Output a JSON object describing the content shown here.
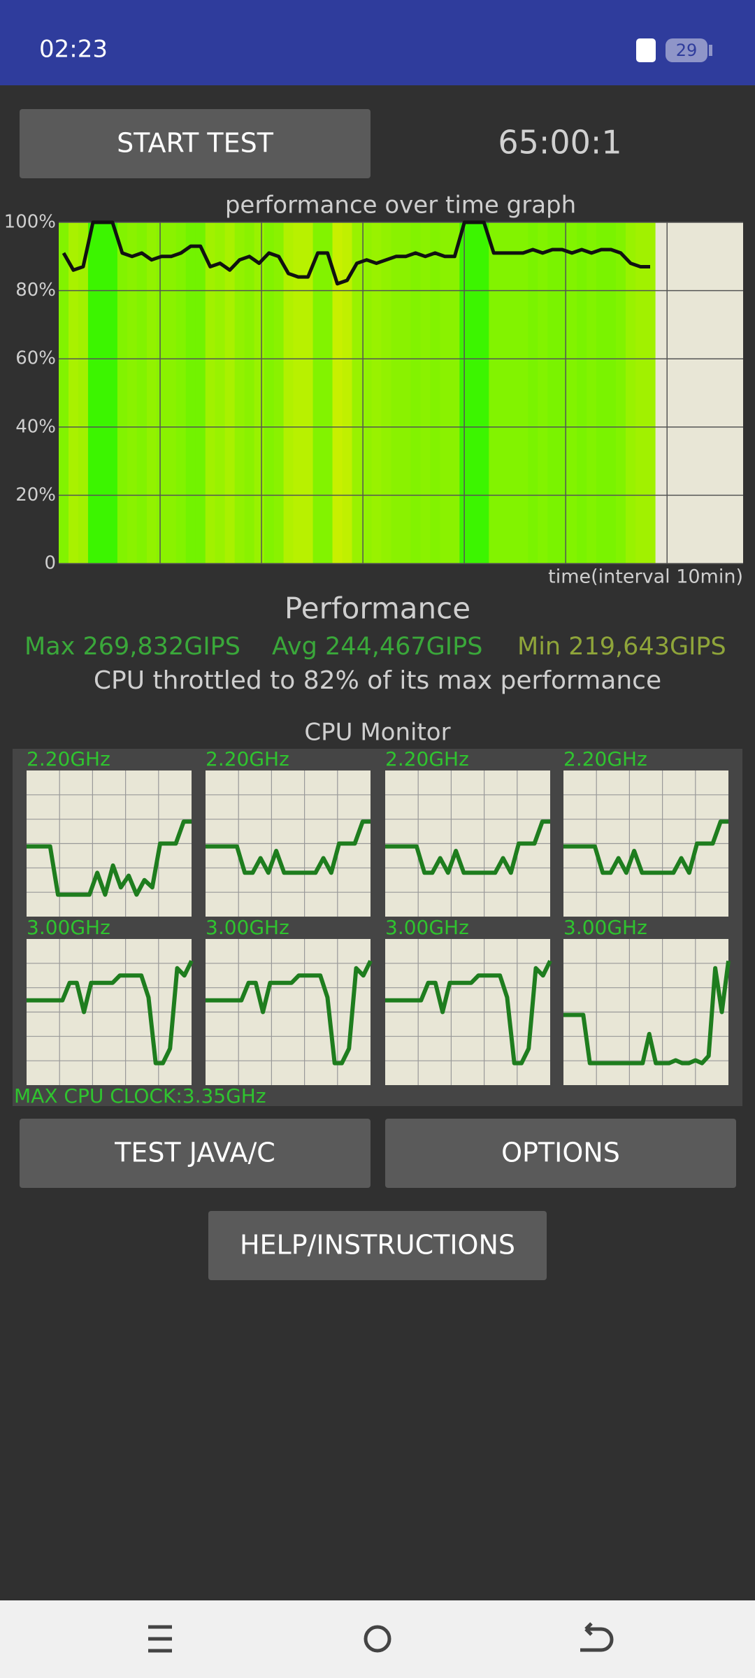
{
  "status_bar": {
    "time": "02:23",
    "battery": "29"
  },
  "buttons": {
    "start": "START TEST",
    "test_java": "TEST JAVA/C",
    "options": "OPTIONS",
    "help": "HELP/INSTRUCTIONS"
  },
  "timer": "65:00:1",
  "performance_graph": {
    "title": "performance over time graph",
    "ylim": [
      0,
      100
    ],
    "yticks": [
      {
        "value": 0,
        "label": "0"
      },
      {
        "value": 20,
        "label": "20%"
      },
      {
        "value": 40,
        "label": "40%"
      },
      {
        "value": 60,
        "label": "60%"
      },
      {
        "value": 80,
        "label": "80%"
      },
      {
        "value": 100,
        "label": "100%"
      }
    ],
    "x_label": "time(interval 10min)",
    "values": [
      91,
      86,
      87,
      100,
      100,
      100,
      91,
      90,
      91,
      89,
      90,
      90,
      91,
      93,
      93,
      87,
      88,
      86,
      89,
      90,
      88,
      91,
      90,
      85,
      84,
      84,
      91,
      91,
      82,
      83,
      88,
      89,
      88,
      89,
      90,
      90,
      91,
      90,
      91,
      90,
      90,
      100,
      100,
      100,
      91,
      91,
      91,
      91,
      92,
      91,
      92,
      92,
      91,
      92,
      91,
      92,
      92,
      91,
      88,
      87,
      87
    ]
  },
  "performance": {
    "heading": "Performance",
    "max": "Max 269,832GIPS",
    "avg": "Avg 244,467GIPS",
    "min": "Min 219,643GIPS",
    "throttle": "CPU throttled to 82% of its max performance"
  },
  "cpu_monitor": {
    "title": "CPU Monitor",
    "max_clock": "MAX CPU CLOCK:3.35GHz",
    "cores": [
      {
        "label": "2.20GHz",
        "values": [
          48,
          48,
          48,
          48,
          15,
          15,
          15,
          15,
          15,
          30,
          15,
          35,
          20,
          28,
          15,
          25,
          20,
          50,
          50,
          50,
          65,
          65
        ]
      },
      {
        "label": "2.20GHz",
        "values": [
          48,
          48,
          48,
          48,
          48,
          30,
          30,
          40,
          30,
          45,
          30,
          30,
          30,
          30,
          30,
          40,
          30,
          50,
          50,
          50,
          65,
          65
        ]
      },
      {
        "label": "2.20GHz",
        "values": [
          48,
          48,
          48,
          48,
          48,
          30,
          30,
          40,
          30,
          45,
          30,
          30,
          30,
          30,
          30,
          40,
          30,
          50,
          50,
          50,
          65,
          65
        ]
      },
      {
        "label": "2.20GHz",
        "values": [
          48,
          48,
          48,
          48,
          48,
          30,
          30,
          40,
          30,
          45,
          30,
          30,
          30,
          30,
          30,
          40,
          30,
          50,
          50,
          50,
          65,
          65
        ]
      },
      {
        "label": "3.00GHz",
        "values": [
          58,
          58,
          58,
          58,
          58,
          58,
          70,
          70,
          50,
          70,
          70,
          70,
          70,
          75,
          75,
          75,
          75,
          60,
          15,
          15,
          25,
          80,
          75,
          85
        ]
      },
      {
        "label": "3.00GHz",
        "values": [
          58,
          58,
          58,
          58,
          58,
          58,
          70,
          70,
          50,
          70,
          70,
          70,
          70,
          75,
          75,
          75,
          75,
          60,
          15,
          15,
          25,
          80,
          75,
          85
        ]
      },
      {
        "label": "3.00GHz",
        "values": [
          58,
          58,
          58,
          58,
          58,
          58,
          70,
          70,
          50,
          70,
          70,
          70,
          70,
          75,
          75,
          75,
          75,
          60,
          15,
          15,
          25,
          80,
          75,
          85
        ]
      },
      {
        "label": "3.00GHz",
        "values": [
          48,
          48,
          48,
          48,
          15,
          15,
          15,
          15,
          15,
          15,
          15,
          15,
          15,
          35,
          15,
          15,
          15,
          17,
          15,
          15,
          17,
          15,
          20,
          80,
          50,
          85
        ]
      }
    ]
  }
}
